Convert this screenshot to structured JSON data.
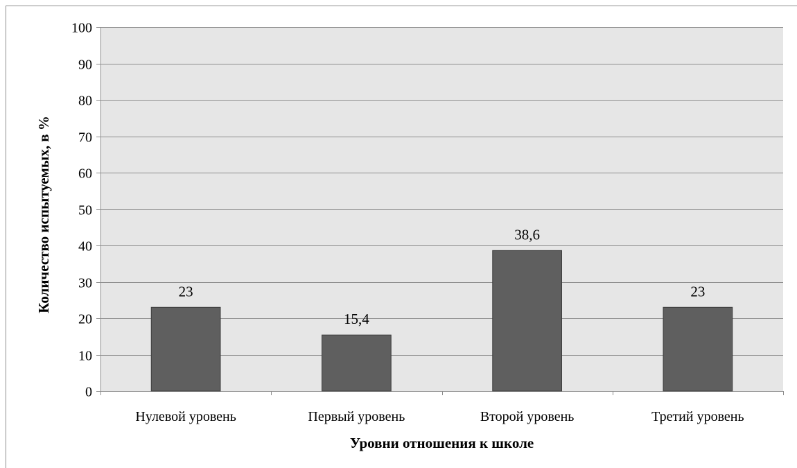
{
  "chart_data": {
    "type": "bar",
    "categories": [
      "Нулевой уровень",
      "Первый уровень",
      "Второй уровень",
      "Третий уровень"
    ],
    "values": [
      23,
      15.4,
      38.6,
      23
    ],
    "data_labels": [
      "23",
      "15,4",
      "38,6",
      "23"
    ],
    "title": "",
    "xlabel": "Уровни отношения к школе",
    "ylabel": "Количество испытуемых, в %",
    "ylim": [
      0,
      100
    ],
    "yticks": [
      0,
      10,
      20,
      30,
      40,
      50,
      60,
      70,
      80,
      90,
      100
    ],
    "grid": true,
    "legend": "none",
    "colors": {
      "bar_fill": "#5f5f5f",
      "bar_stroke": "#3c3c3c",
      "plot_background": "#e6e6e6",
      "grid_line": "#8c8c8c"
    }
  }
}
